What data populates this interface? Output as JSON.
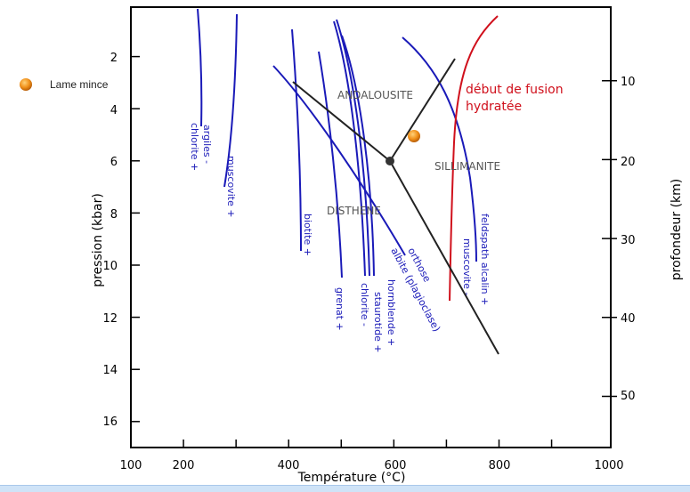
{
  "legend": {
    "label": "Lame mince",
    "marker_color": "#f0901a"
  },
  "x_axis": {
    "label": "Température (°C)",
    "tick_labels": [
      "100",
      "200",
      "400",
      "600",
      "800",
      "1000"
    ],
    "minor_ticks": [
      200,
      300,
      400,
      500,
      600,
      700,
      800,
      900
    ]
  },
  "y_left": {
    "label": "pression (kbar)",
    "tick_labels": [
      "2",
      "4",
      "6",
      "8",
      "10",
      "12",
      "14",
      "16"
    ]
  },
  "y_right": {
    "label": "profondeur (km)",
    "tick_labels": [
      "10",
      "20",
      "30",
      "40",
      "50"
    ]
  },
  "zones": {
    "andalousite": "ANDALOUSITE",
    "sillimanite": "SILLIMANITE",
    "disthene": "DISTHENE"
  },
  "melting": {
    "line1": "début de fusion",
    "line2": "hydratée",
    "color": "#d0101c"
  },
  "reactions": {
    "argiles": "argiles -",
    "chlorite_plus": "chlorite +",
    "muscovite_plus": "muscovite +",
    "biotite": "biotite +",
    "grenat": "grenat +",
    "chlorite_minus": "chlorite -",
    "staurotide": "staurotide +",
    "hornblende": "hornblende +",
    "albite": "albite (plagioclase)",
    "orthose": "orthose",
    "muscovite_minus": "muscovite -",
    "feldspath": "feldspath alcalin +"
  },
  "colors": {
    "reaction": "#1a1ab8",
    "triple": "#222222"
  }
}
